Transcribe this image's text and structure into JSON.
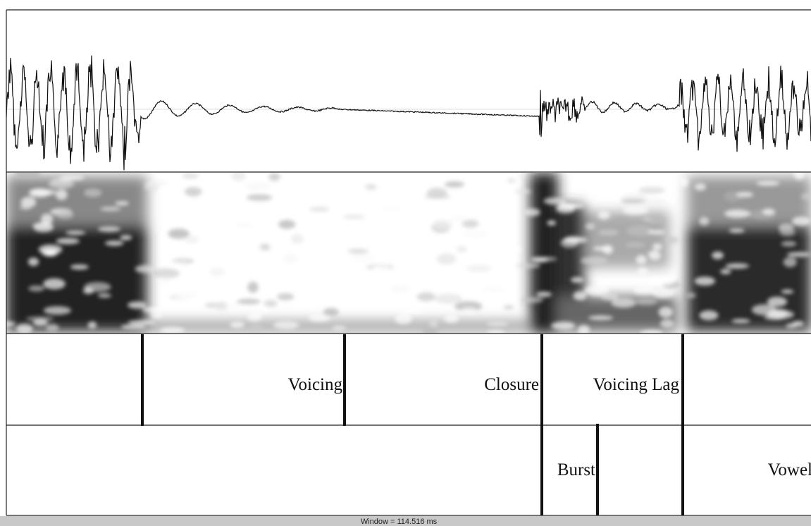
{
  "tiers": [
    {
      "labels": [
        "Voicing",
        "Closure",
        "Voicing Lag"
      ]
    },
    {
      "labels": [
        "Burst",
        "Vowel"
      ]
    }
  ],
  "status": "Window = 114.516 ms"
}
